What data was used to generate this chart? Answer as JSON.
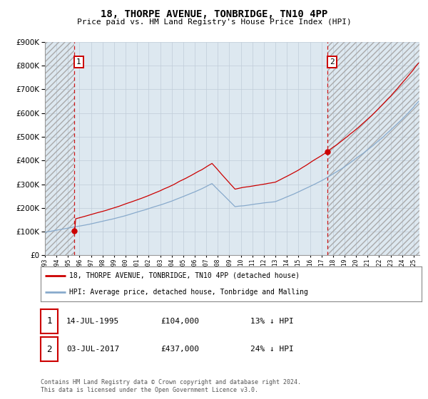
{
  "title": "18, THORPE AVENUE, TONBRIDGE, TN10 4PP",
  "subtitle": "Price paid vs. HM Land Registry's House Price Index (HPI)",
  "sale1_year": 1995.54,
  "sale1_price": 104000,
  "sale1_label": "1",
  "sale2_year": 2017.5,
  "sale2_price": 437000,
  "sale2_label": "2",
  "red_color": "#cc0000",
  "blue_color": "#88aacc",
  "legend1": "18, THORPE AVENUE, TONBRIDGE, TN10 4PP (detached house)",
  "legend2": "HPI: Average price, detached house, Tonbridge and Malling",
  "table_row1_num": "1",
  "table_row1_date": "14-JUL-1995",
  "table_row1_price": "£104,000",
  "table_row1_hpi": "13% ↓ HPI",
  "table_row2_num": "2",
  "table_row2_date": "03-JUL-2017",
  "table_row2_price": "£437,000",
  "table_row2_hpi": "24% ↓ HPI",
  "footnote": "Contains HM Land Registry data © Crown copyright and database right 2024.\nThis data is licensed under the Open Government Licence v3.0.",
  "xmin": 1993,
  "xmax": 2025.5,
  "ymin": 0,
  "ymax": 900000,
  "bg_color": "#dde8f0"
}
